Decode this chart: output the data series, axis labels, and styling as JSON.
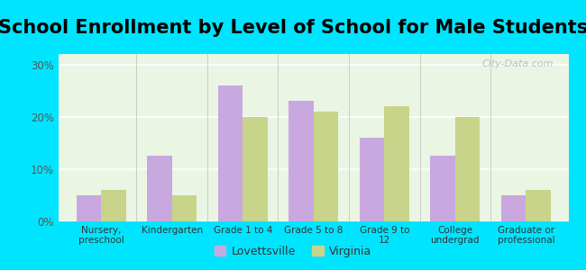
{
  "title": "School Enrollment by Level of School for Male Students",
  "categories": [
    "Nursery,\npreschool",
    "Kindergarten",
    "Grade 1 to 4",
    "Grade 5 to 8",
    "Grade 9 to\n12",
    "College\nundergrad",
    "Graduate or\nprofessional"
  ],
  "lovettsville": [
    5,
    12.5,
    26,
    23,
    16,
    12.5,
    5
  ],
  "virginia": [
    6,
    5,
    20,
    21,
    22,
    20,
    6
  ],
  "lovettsville_color": "#c9a8e0",
  "virginia_color": "#c8d48a",
  "background_outer": "#00e5ff",
  "background_inner_top": "#e8f5e9",
  "background_inner_bottom": "#f0f8e8",
  "title_fontsize": 15,
  "ylabel_ticks": [
    "0%",
    "10%",
    "20%",
    "30%"
  ],
  "yticks": [
    0,
    10,
    20,
    30
  ],
  "ylim": [
    0,
    32
  ],
  "bar_width": 0.35,
  "legend_labels": [
    "Lovettsville",
    "Virginia"
  ],
  "watermark": "City-Data.com"
}
